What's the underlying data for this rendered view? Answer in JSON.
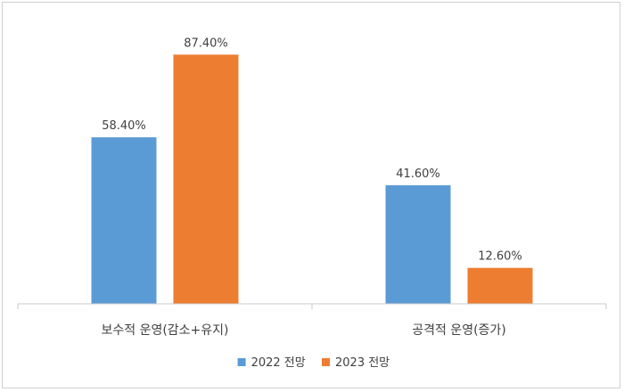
{
  "chart_data": {
    "type": "bar",
    "categories": [
      "보수적 운영(감소+유지)",
      "공격적 운영(증가)"
    ],
    "series": [
      {
        "name": "2022 전망",
        "values": [
          58.4,
          41.6
        ],
        "labels": [
          "58.40%",
          "41.60%"
        ],
        "color": "#5b9bd5"
      },
      {
        "name": "2023 전망",
        "values": [
          87.4,
          12.6
        ],
        "labels": [
          "87.40%",
          "12.60%"
        ],
        "color": "#ed7d31"
      }
    ],
    "ylim": [
      0,
      100
    ],
    "grid": false,
    "legend": "bottom-center",
    "title": "",
    "xlabel": "",
    "ylabel": ""
  }
}
